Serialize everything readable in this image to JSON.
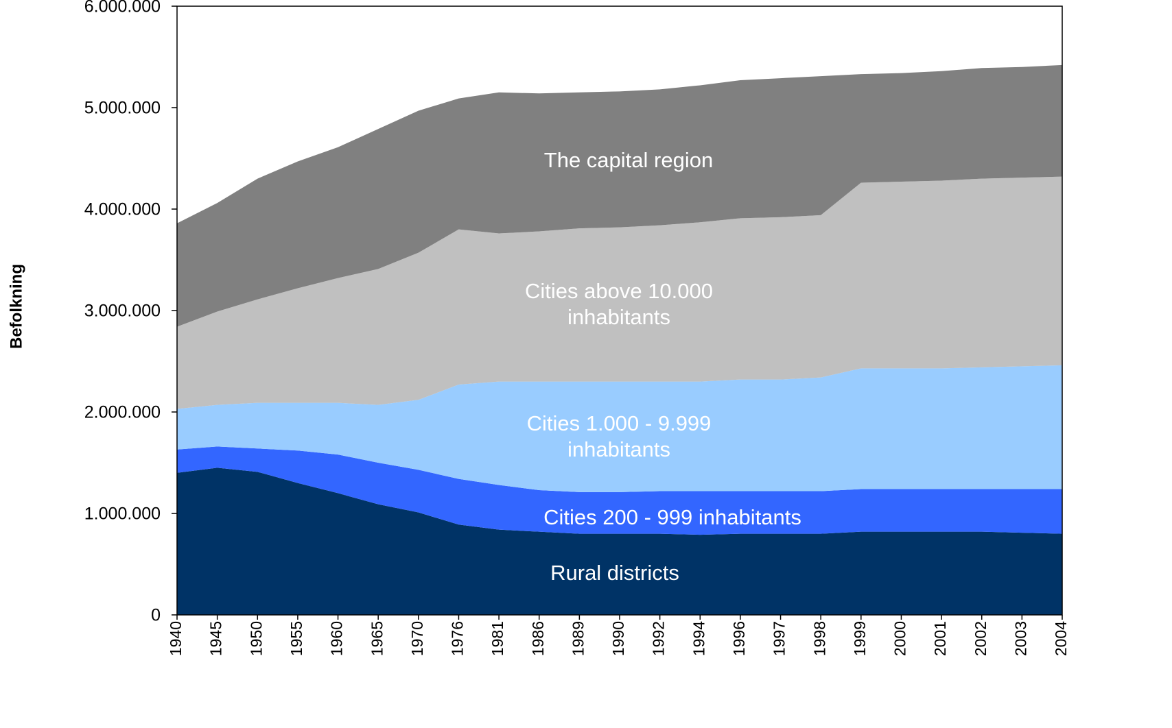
{
  "chart_data": {
    "type": "stacked_area",
    "y_label": "Befolkning",
    "categories": [
      "1940",
      "1945",
      "1950",
      "1955",
      "1960",
      "1965",
      "1970",
      "1976",
      "1981",
      "1986",
      "1989",
      "1990",
      "1992",
      "1994",
      "1996",
      "1997",
      "1998",
      "1999",
      "2000",
      "2001",
      "2002",
      "2003",
      "2004"
    ],
    "series": [
      {
        "name": "Rural districts",
        "color": "#003366",
        "values": [
          1400000,
          1450000,
          1410000,
          1300000,
          1200000,
          1090000,
          1010000,
          890000,
          840000,
          820000,
          800000,
          800000,
          800000,
          790000,
          800000,
          800000,
          800000,
          820000,
          820000,
          820000,
          820000,
          810000,
          800000
        ]
      },
      {
        "name": "Cities 200 - 999 inhabitants",
        "color": "#3366ff",
        "values": [
          230000,
          210000,
          230000,
          320000,
          380000,
          410000,
          420000,
          450000,
          440000,
          410000,
          410000,
          410000,
          420000,
          430000,
          420000,
          420000,
          420000,
          420000,
          420000,
          420000,
          420000,
          430000,
          440000
        ]
      },
      {
        "name": "Cities 1.000 - 9.999\ninhabitants",
        "color": "#99ccff",
        "values": [
          400000,
          410000,
          450000,
          470000,
          510000,
          570000,
          690000,
          930000,
          1020000,
          1070000,
          1090000,
          1090000,
          1080000,
          1080000,
          1100000,
          1100000,
          1120000,
          1190000,
          1190000,
          1190000,
          1200000,
          1210000,
          1220000
        ]
      },
      {
        "name": "Cities above 10.000\ninhabitants",
        "color": "#c0c0c0",
        "values": [
          810000,
          920000,
          1020000,
          1130000,
          1230000,
          1340000,
          1450000,
          1530000,
          1460000,
          1480000,
          1510000,
          1520000,
          1540000,
          1570000,
          1590000,
          1600000,
          1600000,
          1830000,
          1840000,
          1850000,
          1860000,
          1860000,
          1860000
        ]
      },
      {
        "name": "The capital region",
        "color": "#808080",
        "values": [
          1020000,
          1070000,
          1190000,
          1250000,
          1290000,
          1380000,
          1400000,
          1290000,
          1390000,
          1360000,
          1340000,
          1340000,
          1340000,
          1350000,
          1360000,
          1370000,
          1370000,
          1070000,
          1070000,
          1080000,
          1090000,
          1090000,
          1100000
        ]
      }
    ],
    "ylim": [
      0,
      6000000
    ],
    "yticks": [
      0,
      {
        "value": 1000000,
        "label": "1.000.000"
      },
      {
        "value": 2000000,
        "label": "2.000.000"
      },
      {
        "value": 3000000,
        "label": "3.000.000"
      },
      {
        "value": 4000000,
        "label": "4.000.000"
      },
      {
        "value": 5000000,
        "label": "5.000.000"
      },
      {
        "value": 6000000,
        "label": "6.000.000"
      }
    ]
  }
}
